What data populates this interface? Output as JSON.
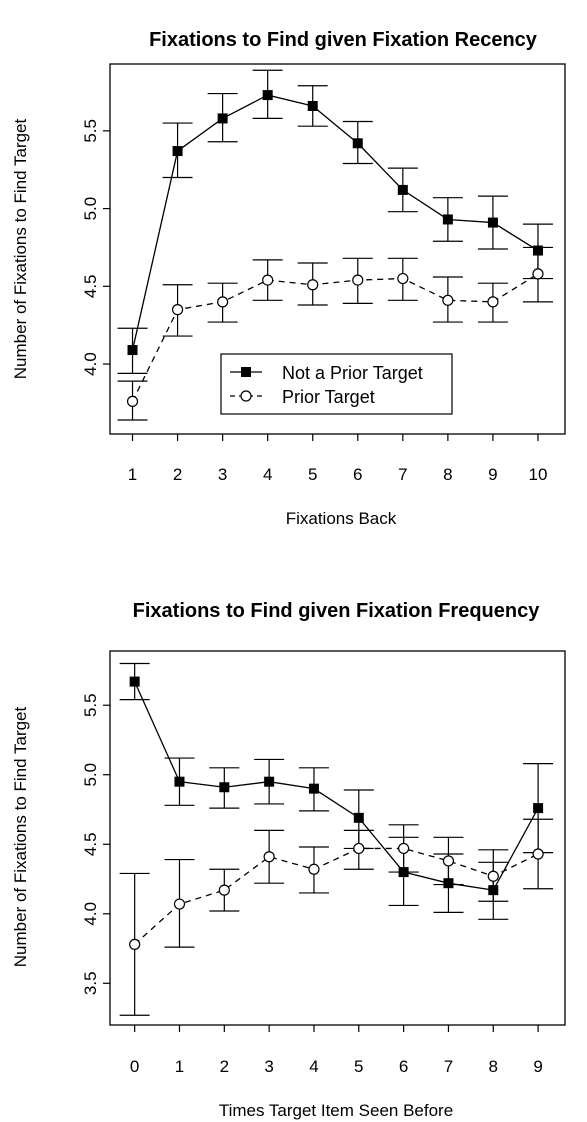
{
  "chart_data": [
    {
      "type": "line",
      "title": "Fixations to Find given Fixation Recency",
      "xlabel": "Fixations Back",
      "ylabel": "Number of Fixations to Find Target",
      "categories": [
        "1",
        "2",
        "3",
        "4",
        "5",
        "6",
        "7",
        "8",
        "9",
        "10"
      ],
      "x": [
        1,
        2,
        3,
        4,
        5,
        6,
        7,
        8,
        9,
        10
      ],
      "xlim": [
        0.5,
        10.6
      ],
      "ylim": [
        3.55,
        5.93
      ],
      "yticks": [
        "4.0",
        "4.5",
        "5.0",
        "5.5"
      ],
      "legend_position": "bottom-center",
      "series": [
        {
          "name": "Not a Prior Target",
          "marker": "filled-square",
          "line": "solid",
          "values": [
            4.09,
            5.37,
            5.58,
            5.73,
            5.66,
            5.42,
            5.12,
            4.93,
            4.91,
            4.73
          ],
          "error_low": [
            3.94,
            5.2,
            5.43,
            5.58,
            5.53,
            5.29,
            4.98,
            4.79,
            4.74,
            4.55
          ],
          "error_high": [
            4.23,
            5.55,
            5.74,
            5.89,
            5.79,
            5.56,
            5.26,
            5.07,
            5.08,
            4.9
          ]
        },
        {
          "name": "Prior Target",
          "marker": "open-circle",
          "line": "dashed",
          "values": [
            3.76,
            4.35,
            4.4,
            4.54,
            4.51,
            4.54,
            4.55,
            4.41,
            4.4,
            4.58
          ],
          "error_low": [
            3.64,
            4.18,
            4.27,
            4.41,
            4.38,
            4.39,
            4.41,
            4.27,
            4.27,
            4.4
          ],
          "error_high": [
            3.89,
            4.51,
            4.52,
            4.67,
            4.65,
            4.68,
            4.68,
            4.56,
            4.52,
            4.75
          ]
        }
      ]
    },
    {
      "type": "line",
      "title": "Fixations to Find given Fixation Frequency",
      "xlabel": "Times Target Item Seen Before",
      "ylabel": "Number of Fixations to Find Target",
      "categories": [
        "0",
        "1",
        "2",
        "3",
        "4",
        "5",
        "6",
        "7",
        "8",
        "9"
      ],
      "x": [
        0,
        1,
        2,
        3,
        4,
        5,
        6,
        7,
        8,
        9
      ],
      "xlim": [
        -0.55,
        9.6
      ],
      "ylim": [
        3.2,
        5.89
      ],
      "yticks": [
        "3.5",
        "4.0",
        "4.5",
        "5.0",
        "5.5"
      ],
      "series": [
        {
          "name": "Not a Prior Target",
          "marker": "filled-square",
          "line": "solid",
          "values": [
            5.67,
            4.95,
            4.91,
            4.95,
            4.9,
            4.69,
            4.3,
            4.22,
            4.17,
            4.76
          ],
          "error_low": [
            5.54,
            4.78,
            4.76,
            4.79,
            4.74,
            4.47,
            4.06,
            4.01,
            3.96,
            4.44
          ],
          "error_high": [
            5.8,
            5.12,
            5.05,
            5.11,
            5.05,
            4.89,
            4.55,
            4.43,
            4.37,
            5.08
          ]
        },
        {
          "name": "Prior Target",
          "marker": "open-circle",
          "line": "dashed",
          "values": [
            3.78,
            4.07,
            4.17,
            4.41,
            4.32,
            4.47,
            4.47,
            4.38,
            4.27,
            4.43
          ],
          "error_low": [
            3.27,
            3.76,
            4.02,
            4.22,
            4.15,
            4.32,
            4.3,
            4.21,
            4.09,
            4.18
          ],
          "error_high": [
            4.29,
            4.39,
            4.32,
            4.6,
            4.48,
            4.6,
            4.64,
            4.55,
            4.46,
            4.68
          ]
        }
      ]
    }
  ]
}
